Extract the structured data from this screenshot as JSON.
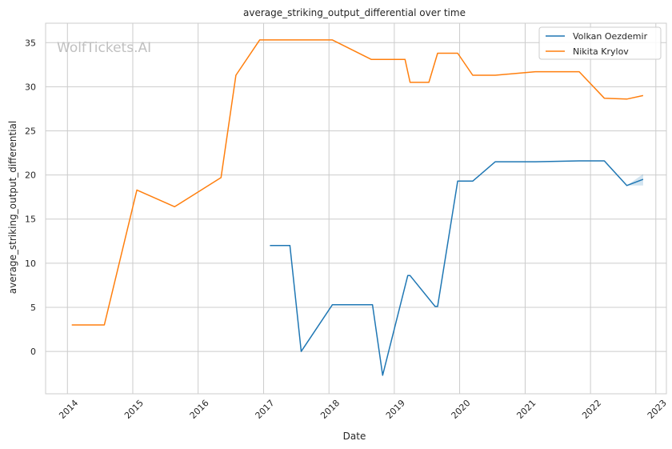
{
  "chart_data": {
    "type": "line",
    "title": "average_striking_output_differential over time",
    "xlabel": "Date",
    "ylabel": "average_striking_output_differential",
    "watermark": "WolfTickets.AI",
    "xlim": [
      "2013-09-01",
      "2023-03-01"
    ],
    "ylim": [
      -4.8,
      37.2
    ],
    "x_ticks": [
      "2014",
      "2015",
      "2016",
      "2017",
      "2018",
      "2019",
      "2020",
      "2021",
      "2022",
      "2023"
    ],
    "y_ticks": [
      0,
      5,
      10,
      15,
      20,
      25,
      30,
      35
    ],
    "grid": true,
    "legend_position": "top-right",
    "series": [
      {
        "name": "Volkan Oezdemir",
        "color": "#1f77b4",
        "x": [
          "2017-02-05",
          "2017-05-28",
          "2017-07-30",
          "2018-01-20",
          "2018-09-01",
          "2018-10-28",
          "2019-03-17",
          "2019-03-30",
          "2019-08-17",
          "2019-08-31",
          "2019-12-21",
          "2020-03-14",
          "2020-07-18",
          "2021-02-27",
          "2021-10-30",
          "2022-03-19",
          "2022-07-23",
          "2022-10-22"
        ],
        "y": [
          12.0,
          12.0,
          0.0,
          5.3,
          5.3,
          -2.7,
          8.6,
          8.6,
          5.1,
          5.1,
          19.3,
          19.3,
          21.5,
          21.5,
          21.6,
          21.6,
          18.8,
          19.5
        ],
        "band": {
          "x": [
            "2022-07-23",
            "2022-10-22"
          ],
          "lower": [
            18.8,
            18.8
          ],
          "upper": [
            18.8,
            20.1
          ]
        }
      },
      {
        "name": "Nikita Krylov",
        "color": "#ff7f0e",
        "x": [
          "2014-01-25",
          "2014-07-26",
          "2015-01-24",
          "2015-08-23",
          "2016-05-08",
          "2016-07-30",
          "2016-12-10",
          "2018-01-20",
          "2018-08-25",
          "2019-03-02",
          "2019-03-30",
          "2019-07-13",
          "2019-08-31",
          "2019-12-21",
          "2020-03-14",
          "2020-07-18",
          "2021-02-27",
          "2021-10-30",
          "2022-03-19",
          "2022-07-23",
          "2022-10-22"
        ],
        "y": [
          3.0,
          3.0,
          18.3,
          16.4,
          19.7,
          31.3,
          35.3,
          35.3,
          33.1,
          33.1,
          30.5,
          30.5,
          33.8,
          33.8,
          31.3,
          31.3,
          31.7,
          31.7,
          28.7,
          28.6,
          29.0
        ]
      }
    ]
  }
}
